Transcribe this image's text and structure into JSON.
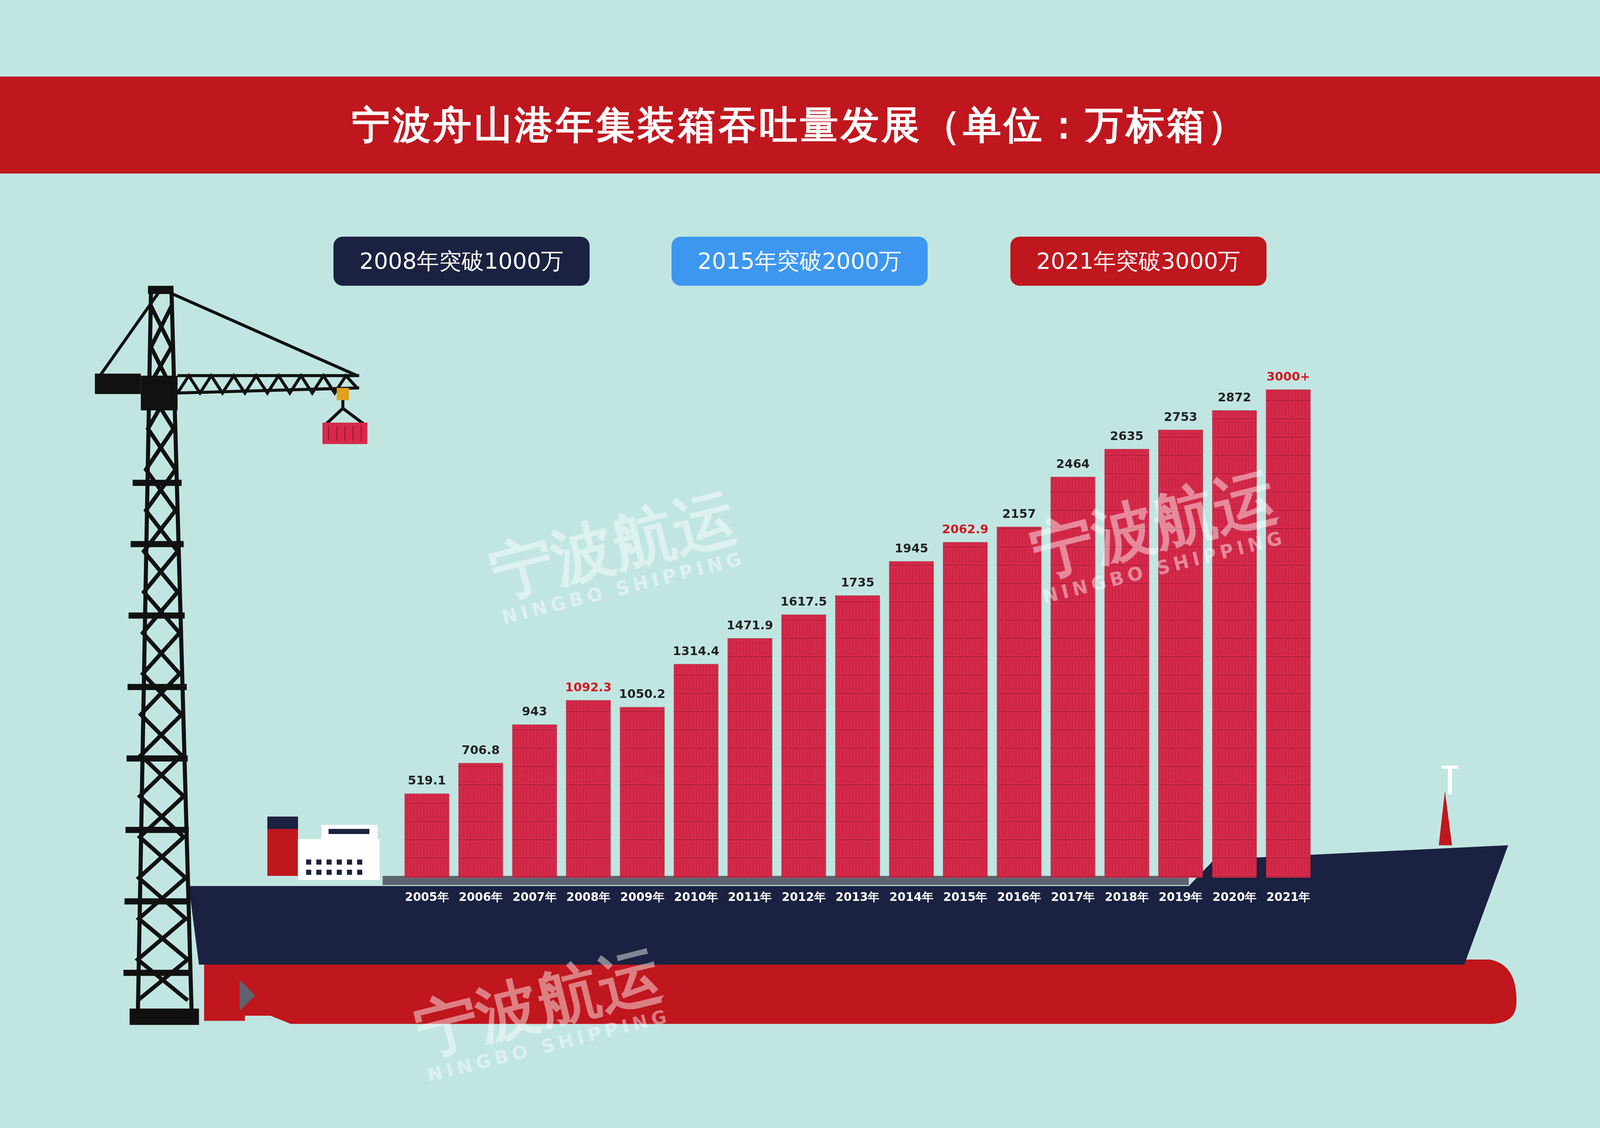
{
  "chart_data": {
    "type": "bar",
    "title": "宁波舟山港年集装箱吞吐量发展（单位：万标箱）",
    "categories": [
      "2005年",
      "2006年",
      "2007年",
      "2008年",
      "2009年",
      "2010年",
      "2011年",
      "2012年",
      "2013年",
      "2014年",
      "2015年",
      "2016年",
      "2017年",
      "2018年",
      "2019年",
      "2020年",
      "2021年"
    ],
    "values": [
      519.1,
      706.8,
      943,
      1092.3,
      1050.2,
      1314.4,
      1471.9,
      1617.5,
      1735,
      1945,
      2062.9,
      2157,
      2464,
      2635,
      2753,
      2872,
      3000
    ],
    "value_labels": [
      "519.1",
      "706.8",
      "943",
      "1092.3",
      "1050.2",
      "1314.4",
      "1471.9",
      "1617.5",
      "1735",
      "1945",
      "2062.9",
      "2157",
      "2464",
      "2635",
      "2753",
      "2872",
      "3000+"
    ],
    "color": "#d7294a",
    "ylim": [
      0,
      3500
    ],
    "grid": false,
    "data_labels": true,
    "tick_labels": "x",
    "annotations": [
      {
        "text": "2008年突破1000万",
        "category": "2008年",
        "color": "#1b2140"
      },
      {
        "text": "2015年突破2000万",
        "category": "2015年",
        "color": "#3d97f0"
      },
      {
        "text": "2021年突破3000万",
        "category": "2021年",
        "color": "#c0161e"
      }
    ],
    "watermark": {
      "text": "宁波航运",
      "subtext": "NINGBO SHIPPING"
    }
  }
}
